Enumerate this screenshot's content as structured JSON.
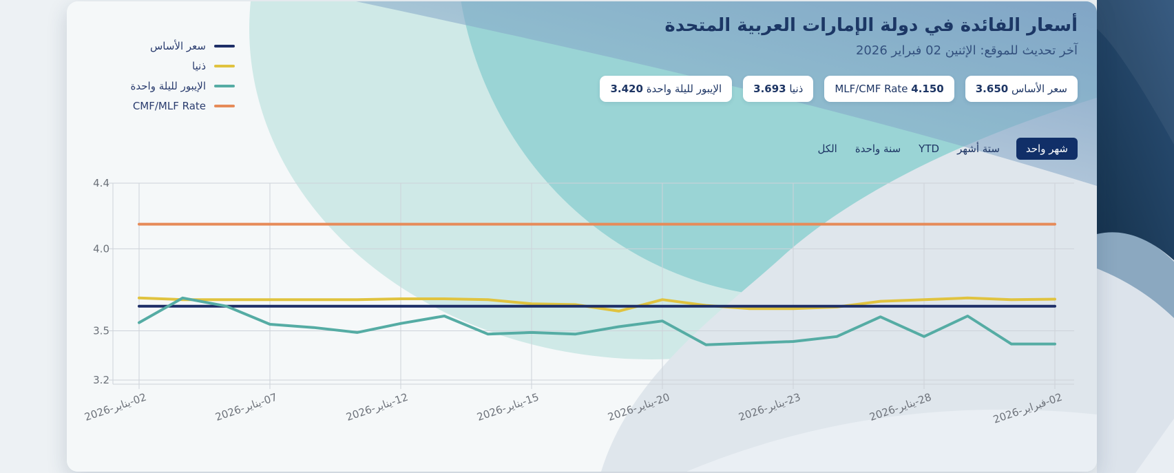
{
  "header": {
    "title": "أسعار الفائدة في دولة الإمارات العربية المتحدة",
    "subtitle": "آخر تحديث للموقع: الإثنين 02 فبراير 2026"
  },
  "legend": {
    "items": [
      {
        "label": "سعر الأساس",
        "color": "#1d2e67"
      },
      {
        "label": "ذنيا",
        "color": "#e0c33f"
      },
      {
        "label": "الإيبور لليلة واحدة",
        "color": "#55aca4"
      },
      {
        "label": "CMF/MLF Rate",
        "color": "#e68b59"
      }
    ]
  },
  "badges": [
    {
      "label": "سعر الأساس",
      "value": "3.650"
    },
    {
      "label": "MLF/CMF Rate",
      "value": "4.150"
    },
    {
      "label": "ذنيا",
      "value": "3.693"
    },
    {
      "label": "الإيبور لليلة واحدة",
      "value": "3.420"
    }
  ],
  "tabs": [
    {
      "label": "شهر واحد",
      "active": true
    },
    {
      "label": "ستة أشهر",
      "active": false
    },
    {
      "label": "YTD",
      "active": false
    },
    {
      "label": "سنة واحدة",
      "active": false
    },
    {
      "label": "الكل",
      "active": false
    }
  ],
  "chart_data": {
    "type": "line",
    "x": [
      "02-يناير-2026",
      "05-يناير-2026",
      "06-يناير-2026",
      "07-يناير-2026",
      "08-يناير-2026",
      "09-يناير-2026",
      "12-يناير-2026",
      "13-يناير-2026",
      "14-يناير-2026",
      "15-يناير-2026",
      "16-يناير-2026",
      "19-يناير-2026",
      "20-يناير-2026",
      "21-يناير-2026",
      "22-يناير-2026",
      "23-يناير-2026",
      "26-يناير-2026",
      "27-يناير-2026",
      "28-يناير-2026",
      "29-يناير-2026",
      "30-يناير-2026",
      "02-فبراير-2026"
    ],
    "x_tick_indices": [
      0,
      3,
      6,
      9,
      12,
      15,
      18,
      21
    ],
    "x_tick_labels": [
      "02-يناير-2026",
      "07-يناير-2026",
      "12-يناير-2026",
      "15-يناير-2026",
      "20-يناير-2026",
      "23-يناير-2026",
      "28-يناير-2026",
      "02-فبراير-2026"
    ],
    "y_ticks": [
      4.4,
      4.0,
      3.5,
      3.2
    ],
    "y_tick_labels": [
      "4.4",
      "4.0",
      "3.5",
      "3.2"
    ],
    "ylim": [
      3.2,
      4.4
    ],
    "grid": true,
    "legend_position": "top-left",
    "title": "أسعار الفائدة في دولة الإمارات العربية المتحدة",
    "xlabel": "",
    "ylabel": "",
    "series": [
      {
        "name": "سعر الأساس",
        "color": "#1d2e67",
        "values": [
          3.65,
          3.65,
          3.65,
          3.65,
          3.65,
          3.65,
          3.65,
          3.65,
          3.65,
          3.65,
          3.65,
          3.65,
          3.65,
          3.65,
          3.65,
          3.65,
          3.65,
          3.65,
          3.65,
          3.65,
          3.65,
          3.65
        ]
      },
      {
        "name": "ذنيا",
        "color": "#e0c33f",
        "values": [
          3.7,
          3.69,
          3.69,
          3.69,
          3.69,
          3.69,
          3.695,
          3.695,
          3.69,
          3.665,
          3.66,
          3.62,
          3.69,
          3.655,
          3.635,
          3.635,
          3.645,
          3.68,
          3.69,
          3.7,
          3.69,
          3.693
        ]
      },
      {
        "name": "الإيبور لليلة واحدة",
        "color": "#55aca4",
        "values": [
          3.55,
          3.7,
          3.65,
          3.54,
          3.52,
          3.49,
          3.545,
          3.59,
          3.48,
          3.49,
          3.48,
          3.525,
          3.56,
          3.415,
          3.425,
          3.435,
          3.465,
          3.585,
          3.465,
          3.59,
          3.42,
          3.42
        ]
      },
      {
        "name": "CMF/MLF Rate",
        "color": "#e68b59",
        "values": [
          4.15,
          4.15,
          4.15,
          4.15,
          4.15,
          4.15,
          4.15,
          4.15,
          4.15,
          4.15,
          4.15,
          4.15,
          4.15,
          4.15,
          4.15,
          4.15,
          4.15,
          4.15,
          4.15,
          4.15,
          4.15,
          4.15
        ]
      }
    ],
    "draw_order": [
      3,
      1,
      0,
      2
    ]
  }
}
